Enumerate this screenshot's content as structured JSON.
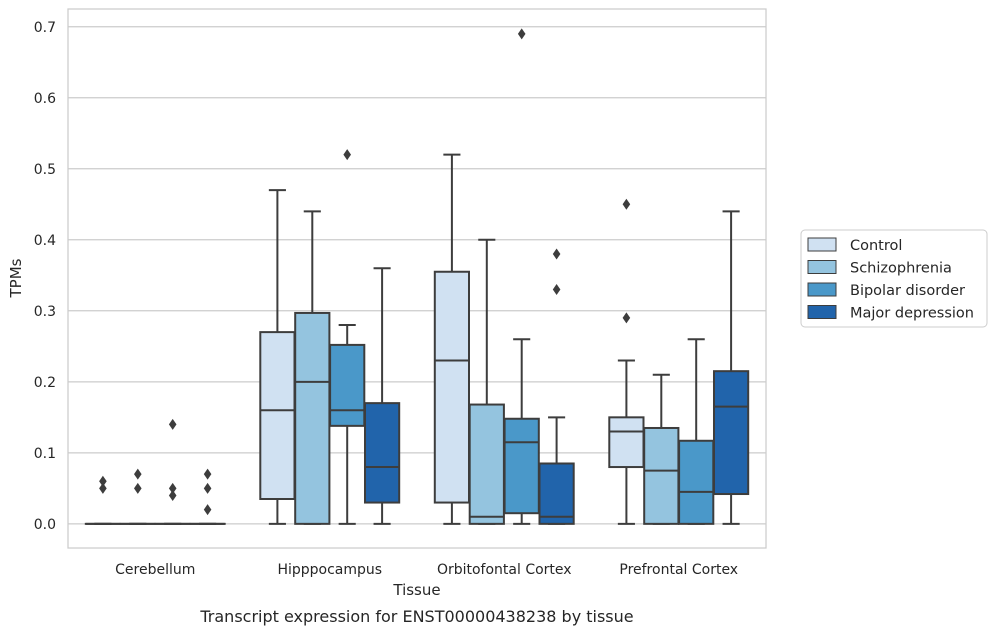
{
  "caption": "Transcript expression for ENST00000438238 by tissue",
  "chart_data": {
    "type": "boxplot",
    "title": "",
    "xlabel": "Tissue",
    "ylabel": "TPMs",
    "ylim": [
      -0.034,
      0.725
    ],
    "yticks": [
      "0.0",
      "0.1",
      "0.2",
      "0.3",
      "0.4",
      "0.5",
      "0.6",
      "0.7"
    ],
    "grid": true,
    "legend_position": "right",
    "categories": [
      "Cerebellum",
      "Hipppocampus",
      "Orbitofontal Cortex",
      "Prefrontal Cortex"
    ],
    "series": [
      {
        "name": "Control",
        "color": "#d0e1f2",
        "boxes": [
          {
            "whislo": 0,
            "q1": 0,
            "median": 0,
            "q3": 0,
            "whishi": 0,
            "fliers": [
              0.06,
              0.05
            ]
          },
          {
            "whislo": 0,
            "q1": 0.035,
            "median": 0.16,
            "q3": 0.27,
            "whishi": 0.47,
            "fliers": []
          },
          {
            "whislo": 0,
            "q1": 0.03,
            "median": 0.23,
            "q3": 0.355,
            "whishi": 0.52,
            "fliers": []
          },
          {
            "whislo": 0,
            "q1": 0.08,
            "median": 0.13,
            "q3": 0.15,
            "whishi": 0.23,
            "fliers": [
              0.29,
              0.45
            ]
          }
        ]
      },
      {
        "name": "Schizophrenia",
        "color": "#94c4df",
        "boxes": [
          {
            "whislo": 0,
            "q1": 0,
            "median": 0,
            "q3": 0,
            "whishi": 0,
            "fliers": [
              0.07,
              0.05
            ]
          },
          {
            "whislo": 0,
            "q1": 0,
            "median": 0.2,
            "q3": 0.297,
            "whishi": 0.44,
            "fliers": []
          },
          {
            "whislo": 0,
            "q1": 0,
            "median": 0.01,
            "q3": 0.168,
            "whishi": 0.4,
            "fliers": []
          },
          {
            "whislo": 0,
            "q1": 0,
            "median": 0.075,
            "q3": 0.135,
            "whishi": 0.21,
            "fliers": []
          }
        ]
      },
      {
        "name": "Bipolar disorder",
        "color": "#4a98c9",
        "boxes": [
          {
            "whislo": 0,
            "q1": 0,
            "median": 0,
            "q3": 0,
            "whishi": 0,
            "fliers": [
              0.14,
              0.05,
              0.04
            ]
          },
          {
            "whislo": 0,
            "q1": 0.138,
            "median": 0.16,
            "q3": 0.252,
            "whishi": 0.28,
            "fliers": [
              0.52
            ]
          },
          {
            "whislo": 0,
            "q1": 0.015,
            "median": 0.115,
            "q3": 0.148,
            "whishi": 0.26,
            "fliers": [
              0.69
            ]
          },
          {
            "whislo": 0,
            "q1": 0,
            "median": 0.045,
            "q3": 0.117,
            "whishi": 0.26,
            "fliers": []
          }
        ]
      },
      {
        "name": "Major depression",
        "color": "#2164ab",
        "boxes": [
          {
            "whislo": 0,
            "q1": 0,
            "median": 0,
            "q3": 0,
            "whishi": 0,
            "fliers": [
              0.07,
              0.05,
              0.02
            ]
          },
          {
            "whislo": 0,
            "q1": 0.03,
            "median": 0.08,
            "q3": 0.17,
            "whishi": 0.36,
            "fliers": []
          },
          {
            "whislo": 0,
            "q1": 0,
            "median": 0.01,
            "q3": 0.085,
            "whishi": 0.15,
            "fliers": [
              0.33,
              0.38
            ]
          },
          {
            "whislo": 0,
            "q1": 0.042,
            "median": 0.165,
            "q3": 0.215,
            "whishi": 0.44,
            "fliers": []
          }
        ]
      }
    ]
  }
}
